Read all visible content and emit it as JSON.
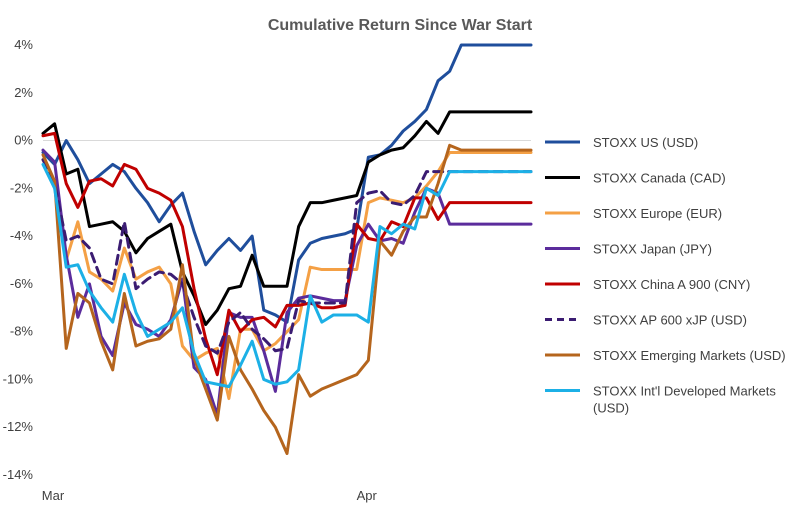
{
  "chart_data": {
    "type": "line",
    "title": "Cumulative Return Since War Start",
    "xlabel": "",
    "ylabel": "",
    "ylim": [
      -14,
      4
    ],
    "yticks": [
      4,
      2,
      0,
      -2,
      -4,
      -6,
      -8,
      -10,
      -12,
      -14
    ],
    "ytick_labels": [
      "4%",
      "2%",
      "0%",
      "-2%",
      "-4%",
      "-6%",
      "-8%",
      "-10%",
      "-12%",
      "-14%"
    ],
    "x_range": [
      0,
      42
    ],
    "xtick_positions": [
      0,
      27
    ],
    "xtick_labels": [
      "Mar",
      "Apr"
    ],
    "grid": false,
    "legend_position": "right",
    "x": [
      0,
      1,
      2,
      3,
      4,
      5,
      6,
      7,
      8,
      9,
      10,
      11,
      12,
      13,
      14,
      15,
      16,
      17,
      18,
      19,
      20,
      21,
      22,
      23,
      24,
      25,
      26,
      27,
      28,
      29,
      30,
      31,
      32,
      33,
      34,
      35,
      36,
      37,
      38,
      39,
      40,
      41,
      42
    ],
    "series": [
      {
        "name": "STOXX US (USD)",
        "color": "#1F4E9C",
        "dashed": false,
        "values": [
          -0.5,
          -1.0,
          0.0,
          -0.8,
          -1.8,
          -1.4,
          -1.0,
          -1.3,
          -2.0,
          -2.6,
          -3.4,
          -2.7,
          -2.2,
          -3.8,
          -5.2,
          -4.6,
          -4.1,
          -4.6,
          -4.0,
          -7.1,
          -7.3,
          -7.6,
          -5.0,
          -4.3,
          -4.1,
          -4.0,
          -3.9,
          -3.7,
          -0.7,
          -0.6,
          -0.2,
          0.4,
          0.8,
          1.3,
          2.5,
          2.9,
          4.0,
          4.0,
          4.0,
          4.0,
          4.0,
          4.0,
          4.0
        ]
      },
      {
        "name": "STOXX Canada (CAD)",
        "color": "#000000",
        "dashed": false,
        "values": [
          0.3,
          0.7,
          -1.4,
          -1.2,
          -3.6,
          -3.5,
          -3.4,
          -3.8,
          -4.7,
          -4.1,
          -3.8,
          -3.5,
          -5.5,
          -6.5,
          -7.7,
          -7.1,
          -6.2,
          -6.1,
          -4.8,
          -6.1,
          -6.1,
          -6.1,
          -3.6,
          -2.6,
          -2.6,
          -2.5,
          -2.4,
          -2.3,
          -0.9,
          -0.6,
          -0.4,
          -0.3,
          0.2,
          0.8,
          0.3,
          1.2,
          1.2,
          1.2,
          1.2,
          1.2,
          1.2,
          1.2,
          1.2
        ]
      },
      {
        "name": "STOXX Europe (EUR)",
        "color": "#F4A045",
        "dashed": false,
        "values": [
          -0.8,
          -1.7,
          -5.0,
          -3.4,
          -5.5,
          -5.8,
          -6.3,
          -4.5,
          -5.8,
          -5.5,
          -5.3,
          -6.0,
          -8.6,
          -9.2,
          -8.9,
          -8.7,
          -10.8,
          -7.9,
          -7.9,
          -8.8,
          -8.5,
          -8.0,
          -7.5,
          -5.3,
          -5.4,
          -5.4,
          -5.4,
          -5.4,
          -2.6,
          -2.4,
          -2.5,
          -2.6,
          -2.4,
          -1.9,
          -1.3,
          -0.5,
          -0.5,
          -0.5,
          -0.5,
          -0.5,
          -0.5,
          -0.5,
          -0.5
        ]
      },
      {
        "name": "STOXX Japan (JPY)",
        "color": "#5B2C9C",
        "dashed": false,
        "values": [
          -0.4,
          -0.9,
          -4.8,
          -7.4,
          -6.0,
          -8.2,
          -9.0,
          -6.8,
          -7.7,
          -7.9,
          -8.2,
          -7.5,
          -5.8,
          -9.5,
          -10.0,
          -11.5,
          -7.2,
          -7.4,
          -7.4,
          -8.8,
          -10.5,
          -7.2,
          -6.6,
          -6.5,
          -6.6,
          -6.7,
          -6.7,
          -4.4,
          -3.5,
          -4.2,
          -4.1,
          -4.3,
          -3.0,
          -2.0,
          -2.2,
          -3.5,
          -3.5,
          -3.5,
          -3.5,
          -3.5,
          -3.5,
          -3.5,
          -3.5
        ]
      },
      {
        "name": "STOXX China A 900 (CNY)",
        "color": "#C00000",
        "dashed": false,
        "values": [
          0.2,
          0.3,
          -1.8,
          -2.8,
          -1.7,
          -1.6,
          -1.9,
          -1.0,
          -1.2,
          -2.0,
          -2.2,
          -2.5,
          -3.6,
          -6.2,
          -8.3,
          -9.8,
          -7.1,
          -8.0,
          -7.5,
          -7.4,
          -7.8,
          -6.9,
          -6.9,
          -6.8,
          -7.0,
          -7.0,
          -6.9,
          -3.5,
          -4.1,
          -4.2,
          -3.4,
          -3.6,
          -2.4,
          -2.4,
          -3.3,
          -2.6,
          -2.6,
          -2.6,
          -2.6,
          -2.6,
          -2.6,
          -2.6,
          -2.6
        ]
      },
      {
        "name": "STOXX AP 600 xJP (USD)",
        "color": "#3B1C72",
        "dashed": true,
        "values": [
          -0.8,
          -1.8,
          -4.2,
          -4.0,
          -4.5,
          -5.8,
          -6.0,
          -3.4,
          -6.2,
          -5.8,
          -5.5,
          -5.6,
          -6.0,
          -7.4,
          -8.6,
          -8.9,
          -7.6,
          -7.2,
          -7.9,
          -8.3,
          -8.8,
          -8.7,
          -6.7,
          -6.8,
          -6.8,
          -6.8,
          -6.8,
          -2.6,
          -2.2,
          -2.1,
          -2.6,
          -2.7,
          -2.3,
          -1.3,
          -1.3,
          -1.3,
          -1.3,
          -1.3,
          -1.3,
          -1.3,
          -1.3,
          -1.3,
          -1.3
        ]
      },
      {
        "name": "STOXX Emerging Markets (USD)",
        "color": "#B5651D",
        "dashed": false,
        "values": [
          -0.6,
          -1.7,
          -8.7,
          -6.4,
          -6.8,
          -8.4,
          -9.6,
          -6.4,
          -8.6,
          -8.4,
          -8.3,
          -7.9,
          -5.2,
          -9.1,
          -10.4,
          -11.7,
          -8.2,
          -9.6,
          -10.4,
          -11.3,
          -12.0,
          -13.1,
          -9.8,
          -10.7,
          -10.4,
          -10.2,
          -10.0,
          -9.8,
          -9.2,
          -4.2,
          -4.8,
          -3.8,
          -3.2,
          -3.2,
          -1.8,
          -0.2,
          -0.4,
          -0.4,
          -0.4,
          -0.4,
          -0.4,
          -0.4,
          -0.4
        ]
      },
      {
        "name": "STOXX Int'l Developed Markets (USD)",
        "color": "#1CB0E6",
        "dashed": false,
        "values": [
          -1.0,
          -2.0,
          -5.3,
          -5.2,
          -6.3,
          -7.0,
          -7.6,
          -5.6,
          -7.2,
          -8.2,
          -7.9,
          -7.6,
          -7.0,
          -8.9,
          -10.1,
          -10.2,
          -10.3,
          -9.4,
          -8.4,
          -10.0,
          -10.2,
          -10.1,
          -9.6,
          -6.5,
          -7.6,
          -7.3,
          -7.3,
          -7.3,
          -7.6,
          -3.6,
          -3.9,
          -3.5,
          -3.7,
          -2.0,
          -2.3,
          -1.3,
          -1.3,
          -1.3,
          -1.3,
          -1.3,
          -1.3,
          -1.3,
          -1.3
        ]
      }
    ]
  }
}
